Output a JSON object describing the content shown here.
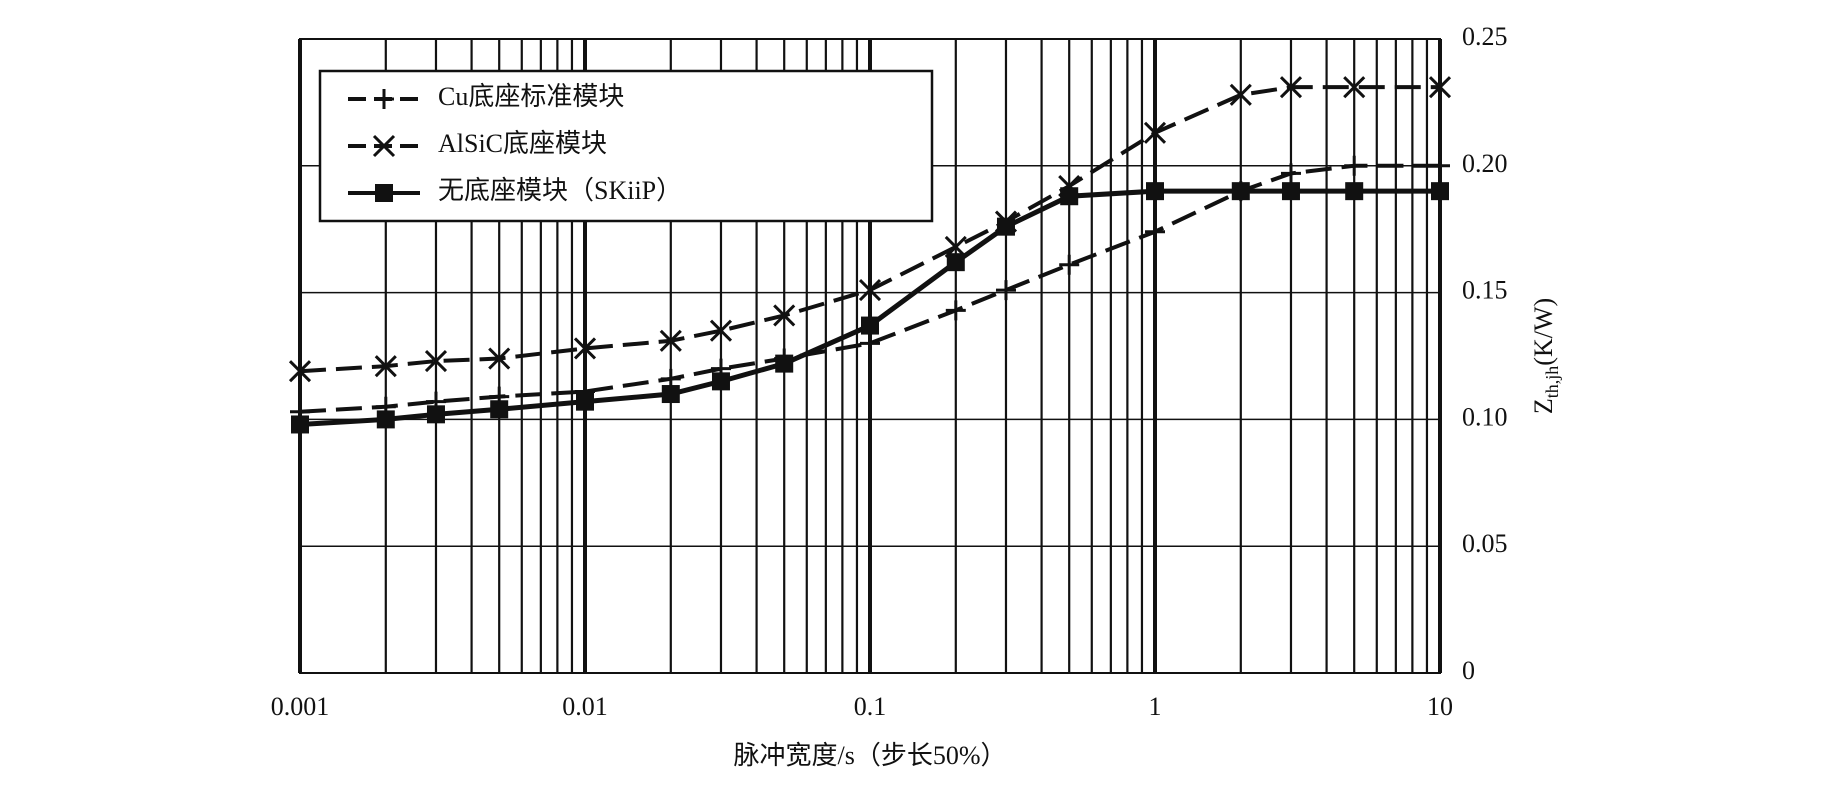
{
  "chart_data": {
    "type": "line",
    "x_label": "脉冲宽度/s（步长50%）",
    "y_label": {
      "main": "Z",
      "sub": "th,jh",
      "unit": "(K/W)"
    },
    "x": [
      0.001,
      0.002,
      0.003,
      0.005,
      0.01,
      0.02,
      0.03,
      0.05,
      0.1,
      0.2,
      0.3,
      0.5,
      1,
      2,
      3,
      5,
      10
    ],
    "series": [
      {
        "name": "Cu底座标准模块",
        "color": "#111111",
        "marker": "plus",
        "dash": true,
        "values": [
          0.103,
          0.105,
          0.107,
          0.109,
          0.111,
          0.116,
          0.12,
          0.124,
          0.13,
          0.143,
          0.151,
          0.161,
          0.174,
          0.19,
          0.197,
          0.2,
          0.2
        ]
      },
      {
        "name": "AlSiC底座模块",
        "color": "#111111",
        "marker": "cross",
        "dash": true,
        "values": [
          0.119,
          0.121,
          0.123,
          0.124,
          0.128,
          0.131,
          0.135,
          0.141,
          0.151,
          0.168,
          0.178,
          0.192,
          0.213,
          0.228,
          0.231,
          0.231,
          0.231
        ]
      },
      {
        "name": "无底座模块（SKiiP）",
        "color": "#111111",
        "marker": "square",
        "dash": false,
        "values": [
          0.098,
          0.1,
          0.102,
          0.104,
          0.107,
          0.11,
          0.115,
          0.122,
          0.137,
          0.162,
          0.176,
          0.188,
          0.19,
          0.19,
          0.19,
          0.19,
          0.19
        ]
      }
    ],
    "xlim": [
      0.001,
      10
    ],
    "xticks": [
      0.001,
      0.01,
      0.1,
      1,
      10
    ],
    "xscale": "log",
    "ylim": [
      0,
      0.25
    ],
    "yticks": [
      0,
      0.05,
      {
        "value": 0.1,
        "label": "0.10"
      },
      0.15,
      {
        "value": 0.2,
        "label": "0.20"
      },
      0.25
    ],
    "yaxis_side": "right",
    "grid": true,
    "legend": "upper left"
  }
}
